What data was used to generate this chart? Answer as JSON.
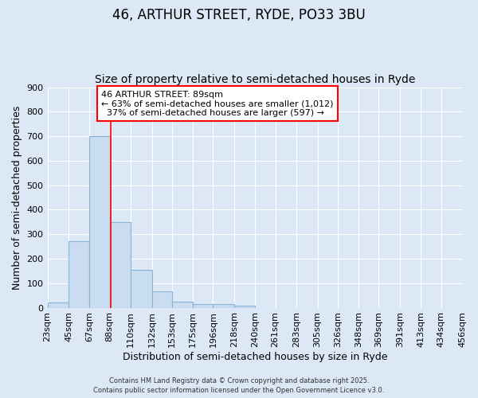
{
  "title": "46, ARTHUR STREET, RYDE, PO33 3BU",
  "subtitle": "Size of property relative to semi-detached houses in Ryde",
  "xlabel": "Distribution of semi-detached houses by size in Ryde",
  "ylabel": "Number of semi-detached properties",
  "bin_labels": [
    "23sqm",
    "45sqm",
    "67sqm",
    "88sqm",
    "110sqm",
    "132sqm",
    "153sqm",
    "175sqm",
    "196sqm",
    "218sqm",
    "240sqm",
    "261sqm",
    "283sqm",
    "305sqm",
    "326sqm",
    "348sqm",
    "369sqm",
    "391sqm",
    "413sqm",
    "434sqm",
    "456sqm"
  ],
  "bin_edges": [
    23,
    45,
    67,
    88,
    110,
    132,
    153,
    175,
    196,
    218,
    240,
    261,
    283,
    305,
    326,
    348,
    369,
    391,
    413,
    434,
    456
  ],
  "bar_heights": [
    20,
    270,
    700,
    350,
    155,
    68,
    25,
    15,
    15,
    8,
    0,
    0,
    0,
    0,
    0,
    0,
    0,
    0,
    0,
    0
  ],
  "bar_color": "#c9dcf0",
  "bar_edge_color": "#8ab4d8",
  "property_line_x": 89,
  "property_line_color": "red",
  "annotation_line1": "46 ARTHUR STREET: 89sqm",
  "annotation_line2": "← 63% of semi-detached houses are smaller (1,012)",
  "annotation_line3": "  37% of semi-detached houses are larger (597) →",
  "ylim": [
    0,
    900
  ],
  "yticks": [
    0,
    100,
    200,
    300,
    400,
    500,
    600,
    700,
    800,
    900
  ],
  "background_color": "#dce8f5",
  "plot_bg_color": "#dce8f5",
  "footer_line1": "Contains HM Land Registry data © Crown copyright and database right 2025.",
  "footer_line2": "Contains public sector information licensed under the Open Government Licence v3.0.",
  "title_fontsize": 12,
  "subtitle_fontsize": 10,
  "label_fontsize": 9,
  "tick_fontsize": 8,
  "annotation_fontsize": 8
}
